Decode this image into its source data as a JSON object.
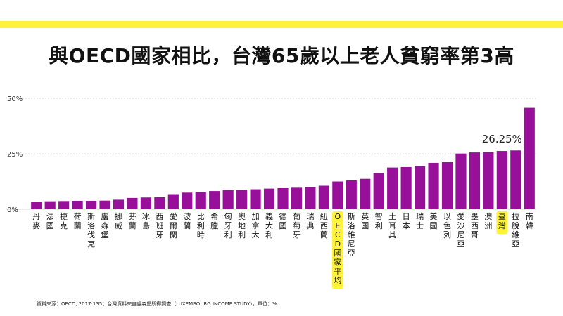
{
  "title": "與OECD國家相比，台灣65歲以上老人貧窮率第3高",
  "source": "資料來源：OECD, 2017:135；台灣資料來自盧森堡所得調查（LUXEMBOURG INCOME STUDY），單位：%",
  "colors": {
    "bar": "#98109a",
    "highlight": "#fff23a",
    "band": "#fff23a",
    "grid": "#cccccc"
  },
  "chart_data": {
    "type": "bar",
    "title": "與OECD國家相比，台灣65歲以上老人貧窮率第3高",
    "xlabel": "",
    "ylabel": "",
    "unit": "%",
    "ylim": [
      0,
      50
    ],
    "yticks": [
      "0%",
      "25%",
      "50%"
    ],
    "grid": true,
    "categories": [
      "丹麥",
      "法國",
      "捷克",
      "荷蘭",
      "斯洛伐克",
      "盧森堡",
      "挪威",
      "芬蘭",
      "冰島",
      "西班牙",
      "愛爾蘭",
      "波蘭",
      "比利時",
      "希臘",
      "匈牙利",
      "奧地利",
      "加拿大",
      "義大利",
      "德國",
      "葡萄牙",
      "瑞典",
      "紐西蘭",
      "OECD國家平均",
      "斯洛維尼亞",
      "英國",
      "智利",
      "土耳其",
      "日本",
      "瑞士",
      "美國",
      "以色列",
      "愛沙尼亞",
      "墨西哥",
      "澳洲",
      "臺灣",
      "拉脫維亞",
      "南韓"
    ],
    "values": [
      3.2,
      3.6,
      3.7,
      3.8,
      3.8,
      3.9,
      4.3,
      5.1,
      5.3,
      5.4,
      6.8,
      7.5,
      7.7,
      8.2,
      8.6,
      8.7,
      9.0,
      9.3,
      9.5,
      9.7,
      10.0,
      10.6,
      12.5,
      13.0,
      13.7,
      16.3,
      18.8,
      19.0,
      19.4,
      20.9,
      21.2,
      25.1,
      25.6,
      25.7,
      26.25,
      26.5,
      45.7
    ],
    "highlighted": [
      "OECD國家平均",
      "臺灣"
    ],
    "annotation": "26.25%"
  }
}
